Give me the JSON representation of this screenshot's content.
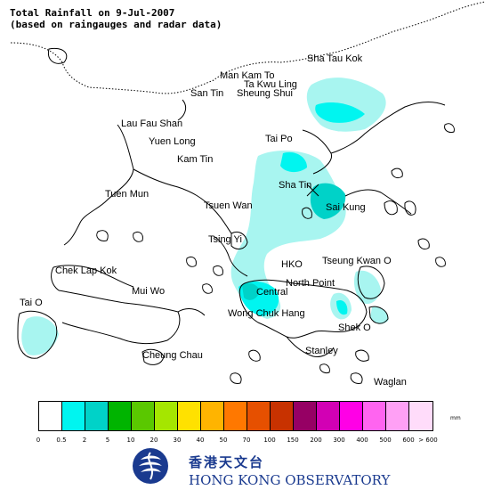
{
  "title": {
    "line1": "Total Rainfall on 9-Jul-2007",
    "line2": "(based on raingauges and radar data)"
  },
  "places": [
    {
      "key": "sha_tau_kok",
      "label": "Sha Tau Kok"
    },
    {
      "key": "man_kam_to",
      "label": "Man Kam To"
    },
    {
      "key": "ta_kwu_ling",
      "label": "Ta Kwu Ling"
    },
    {
      "key": "san_tin",
      "label": "San Tin"
    },
    {
      "key": "sheung_shui",
      "label": "Sheung Shui"
    },
    {
      "key": "lau_fau_shan",
      "label": "Lau Fau Shan"
    },
    {
      "key": "yuen_long",
      "label": "Yuen Long"
    },
    {
      "key": "tai_po",
      "label": "Tai Po"
    },
    {
      "key": "kam_tin",
      "label": "Kam Tin"
    },
    {
      "key": "sha_tin",
      "label": "Sha Tin"
    },
    {
      "key": "tuen_mun",
      "label": "Tuen Mun"
    },
    {
      "key": "tsuen_wan",
      "label": "Tsuen Wan"
    },
    {
      "key": "sai_kung",
      "label": "Sai Kung"
    },
    {
      "key": "tsing_yi",
      "label": "Tsing Yi"
    },
    {
      "key": "hko",
      "label": "HKO"
    },
    {
      "key": "tseung_kwan_o",
      "label": "Tseung Kwan O"
    },
    {
      "key": "chek_lap_kok",
      "label": "Chek Lap Kok"
    },
    {
      "key": "mui_wo",
      "label": "Mui Wo"
    },
    {
      "key": "central",
      "label": "Central"
    },
    {
      "key": "north_point",
      "label": "North Point"
    },
    {
      "key": "tai_o",
      "label": "Tai O"
    },
    {
      "key": "wong_chuk_hang",
      "label": "Wong Chuk Hang"
    },
    {
      "key": "shek_o",
      "label": "Shek O"
    },
    {
      "key": "stanley",
      "label": "Stanley"
    },
    {
      "key": "cheung_chau",
      "label": "Cheung Chau"
    },
    {
      "key": "waglan",
      "label": "Waglan"
    }
  ],
  "legend": {
    "unit": "mm",
    "colors": [
      "#ffffff",
      "#a8f5f0",
      "#00f5f0",
      "#00d2c8",
      "#00b400",
      "#5ac800",
      "#a5e600",
      "#ffe100",
      "#ffb400",
      "#ff7800",
      "#e65000",
      "#c83200",
      "#960064",
      "#d200b4",
      "#ff00e6",
      "#ff64f0",
      "#ffa0f5",
      "#ffdcfa"
    ],
    "ticks": [
      "0",
      "0.5",
      "2",
      "5",
      "10",
      "20",
      "30",
      "40",
      "50",
      "70",
      "100",
      "150",
      "200",
      "300",
      "400",
      "500",
      "600",
      "> 600"
    ]
  },
  "logo": {
    "chinese": "香港天文台",
    "english": "HONG KONG OBSERVATORY",
    "brand_color": "#1a3a8f"
  }
}
